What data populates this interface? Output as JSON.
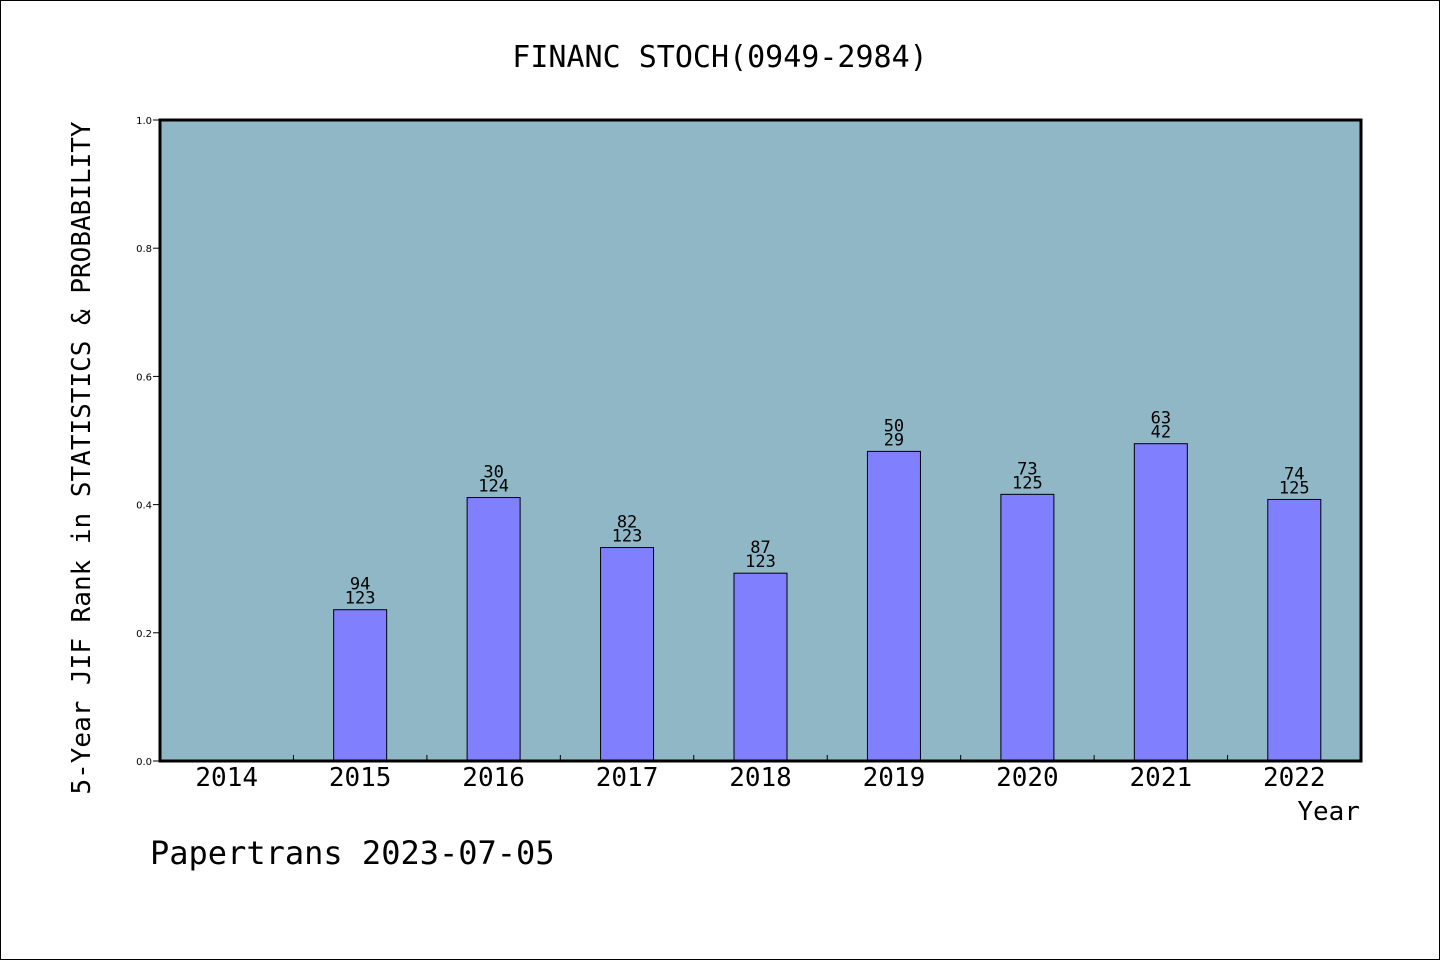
{
  "chart_data": {
    "type": "bar",
    "title": "FINANC STOCH(0949-2984)",
    "xlabel": "Year",
    "ylabel": "5-Year JIF Rank in STATISTICS & PROBABILITY",
    "categories": [
      "2014",
      "2015",
      "2016",
      "2017",
      "2018",
      "2019",
      "2020",
      "2021",
      "2022"
    ],
    "values": [
      null,
      0.236,
      0.411,
      0.333,
      0.293,
      0.483,
      0.416,
      0.495,
      0.408
    ],
    "rank_labels": [
      null,
      {
        "rank": "94",
        "total": "123"
      },
      {
        "rank": "30",
        "total": "124"
      },
      {
        "rank": "82",
        "total": "123"
      },
      {
        "rank": "87",
        "total": "123"
      },
      {
        "rank": "50",
        "total": "29"
      },
      {
        "rank": "73",
        "total": "125"
      },
      {
        "rank": "63",
        "total": "42"
      },
      {
        "rank": "74",
        "total": "125"
      }
    ],
    "ylim": [
      0,
      1.0
    ],
    "yticks": [
      "0.0",
      "0.2",
      "0.4",
      "0.6",
      "0.8",
      "1.0"
    ],
    "grid": false,
    "colors": {
      "plot_bg": "#8fb7c5",
      "bar": "#8080ff",
      "axis": "#000000"
    }
  },
  "footer": {
    "watermark": "Papertrans 2023-07-05"
  }
}
